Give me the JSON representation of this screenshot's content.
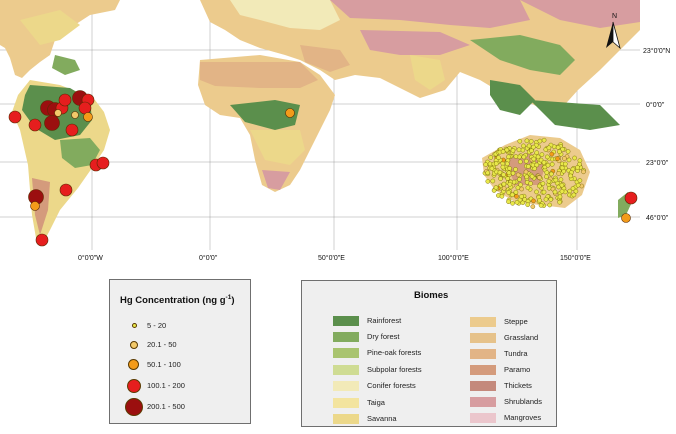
{
  "map": {
    "north_label": "N",
    "longitude_labels": [
      "0°0'0\"W",
      "0°0'0\"",
      "50°0'0\"E",
      "100°0'0\"E",
      "150°0'0\"E"
    ],
    "latitude_labels": [
      "23°0'0\"N",
      "0°0'0\"",
      "23°0'0\"",
      "46°0'0\""
    ]
  },
  "hg_legend": {
    "title": "Hg Concentration (ng g",
    "title_superscript": "-1",
    "title_suffix": ")",
    "classes": [
      {
        "label": "5 - 20",
        "color": "#e8e84a"
      },
      {
        "label": "20.1 - 50",
        "color": "#f2c96a"
      },
      {
        "label": "50.1 - 100",
        "color": "#f39b1a"
      },
      {
        "label": "100.1 - 200",
        "color": "#e61e1e"
      },
      {
        "label": "200.1 - 500",
        "color": "#9b0f0f"
      }
    ]
  },
  "biome_legend": {
    "title": "Biomes",
    "left": [
      {
        "label": "Rainforest",
        "color": "#5b8f4c"
      },
      {
        "label": "Dry forest",
        "color": "#82ab5e"
      },
      {
        "label": "Pine-oak forests",
        "color": "#a9c46f"
      },
      {
        "label": "Subpolar forests",
        "color": "#cfdc93"
      },
      {
        "label": "Conifer forests",
        "color": "#f2eab8"
      },
      {
        "label": "Taiga",
        "color": "#f3e49f"
      },
      {
        "label": "Savanna",
        "color": "#ecd88a"
      }
    ],
    "right": [
      {
        "label": "Steppe",
        "color": "#eccb8d"
      },
      {
        "label": "Grassland",
        "color": "#e6c28a"
      },
      {
        "label": "Tundra",
        "color": "#e2b486"
      },
      {
        "label": "Paramo",
        "color": "#d49b7c"
      },
      {
        "label": "Thickets",
        "color": "#c4897c"
      },
      {
        "label": "Shrublands",
        "color": "#d79da0"
      },
      {
        "label": "Mangroves",
        "color": "#ebc6cc"
      }
    ]
  }
}
